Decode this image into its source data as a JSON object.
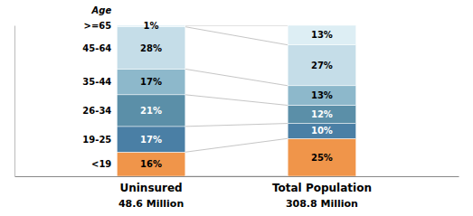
{
  "chart_data": {
    "type": "bar",
    "stacked": true,
    "categories": [
      "Uninsured",
      "Total Population"
    ],
    "category_notes": [
      "48.6 Million",
      "308.8 Million"
    ],
    "annotations": [
      "Age"
    ],
    "series": [
      {
        "name": "<19",
        "color": "#f0954a",
        "values": [
          16,
          25
        ],
        "value_labels": [
          "16%",
          "25%"
        ]
      },
      {
        "name": "19-25",
        "color": "#4a7fa5",
        "values": [
          17,
          10
        ],
        "value_labels": [
          "17%",
          "10%"
        ]
      },
      {
        "name": "26-34",
        "color": "#5b8fa8",
        "values": [
          21,
          12
        ],
        "value_labels": [
          "21%",
          "12%"
        ]
      },
      {
        "name": "35-44",
        "color": "#8db8cb",
        "values": [
          17,
          13
        ],
        "value_labels": [
          "17%",
          "13%"
        ]
      },
      {
        "name": "45-64",
        "color": "#c5dde8",
        "values": [
          28,
          27
        ],
        "value_labels": [
          "28%",
          "27%"
        ]
      },
      {
        "name": ">=65",
        "color": "#ddeef4",
        "values": [
          1,
          13
        ],
        "value_labels": [
          "1%",
          "13%"
        ]
      }
    ],
    "ylim": [
      0,
      100
    ],
    "data_labels": true,
    "tick_labels": "x"
  }
}
